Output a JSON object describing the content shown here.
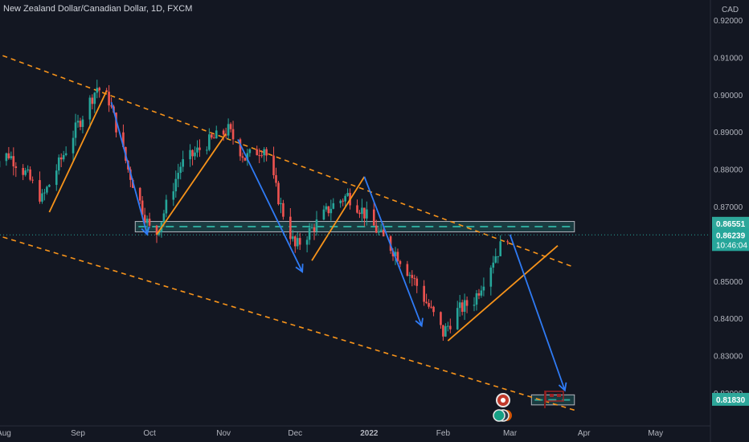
{
  "title": "New Zealand Dollar/Canadian Dollar, 1D, FXCM",
  "currency": "CAD",
  "colors": {
    "background": "#131722",
    "up": "#26a69a",
    "down": "#ef5350",
    "channel": "#f7931a",
    "arrow_down": "#2f7bf5",
    "arrow_up": "#f7931a",
    "zone": "#2ea79a",
    "zone_border": "#b2b5be"
  },
  "chart_data": {
    "type": "candlestick",
    "symbol": "NZDCAD",
    "timeframe": "1D",
    "source": "FXCM",
    "xlabels": [
      "Aug",
      "Sep",
      "Oct",
      "Nov",
      "Dec",
      "2022",
      "Feb",
      "Mar",
      "Apr",
      "May"
    ],
    "ylabels": [
      "0.92000",
      "0.91000",
      "0.90000",
      "0.89000",
      "0.88000",
      "0.87000",
      "0.86000",
      "0.85000",
      "0.84000",
      "0.83000",
      "0.82000"
    ],
    "ylim": [
      0.8142,
      0.9245
    ],
    "last_price": "0.86239",
    "countdown": "10:46:04",
    "price_tags": [
      {
        "label": "0.86551",
        "value": 0.86551,
        "color": "#2ea79a"
      },
      {
        "label": "0.81830",
        "value": 0.8183,
        "color": "#2ea79a"
      }
    ],
    "candles_close_anchors": [
      {
        "date": "2021-07-27",
        "close": 0.8815
      },
      {
        "date": "2021-08-03",
        "close": 0.884
      },
      {
        "date": "2021-08-10",
        "close": 0.879
      },
      {
        "date": "2021-08-17",
        "close": 0.872
      },
      {
        "date": "2021-08-23",
        "close": 0.88
      },
      {
        "date": "2021-09-01",
        "close": 0.892
      },
      {
        "date": "2021-09-09",
        "close": 0.902
      },
      {
        "date": "2021-09-14",
        "close": 0.8985
      },
      {
        "date": "2021-09-22",
        "close": 0.88
      },
      {
        "date": "2021-10-01",
        "close": 0.864
      },
      {
        "date": "2021-10-04",
        "close": 0.863
      },
      {
        "date": "2021-10-14",
        "close": 0.881
      },
      {
        "date": "2021-10-25",
        "close": 0.887
      },
      {
        "date": "2021-11-03",
        "close": 0.8905
      },
      {
        "date": "2021-11-10",
        "close": 0.883
      },
      {
        "date": "2021-11-18",
        "close": 0.886
      },
      {
        "date": "2021-11-25",
        "close": 0.87
      },
      {
        "date": "2021-12-01",
        "close": 0.859
      },
      {
        "date": "2021-12-08",
        "close": 0.864
      },
      {
        "date": "2021-12-16",
        "close": 0.87
      },
      {
        "date": "2021-12-23",
        "close": 0.873
      },
      {
        "date": "2021-12-29",
        "close": 0.869
      },
      {
        "date": "2022-01-06",
        "close": 0.862
      },
      {
        "date": "2022-01-13",
        "close": 0.857
      },
      {
        "date": "2022-01-20",
        "close": 0.85
      },
      {
        "date": "2022-01-27",
        "close": 0.842
      },
      {
        "date": "2022-02-01",
        "close": 0.836
      },
      {
        "date": "2022-02-07",
        "close": 0.842
      },
      {
        "date": "2022-02-14",
        "close": 0.845
      },
      {
        "date": "2022-02-22",
        "close": 0.856
      },
      {
        "date": "2022-02-28",
        "close": 0.8624
      }
    ],
    "drawings": [
      {
        "type": "channel-upper",
        "from": {
          "date": "2021-07-28",
          "price": 0.9113
        },
        "to": {
          "date": "2022-03-28",
          "price": 0.8537
        }
      },
      {
        "type": "channel-lower",
        "from": {
          "date": "2021-07-28",
          "price": 0.8625
        },
        "to": {
          "date": "2022-03-28",
          "price": 0.8154
        }
      },
      {
        "type": "zone",
        "from_date": "2021-09-25",
        "to_date": "2022-03-28",
        "top": 0.866,
        "bottom": 0.8632
      },
      {
        "type": "zone",
        "from_date": "2022-03-10",
        "to_date": "2022-03-28",
        "top": 0.8195,
        "bottom": 0.8168
      }
    ],
    "grid": false,
    "legend": "none"
  }
}
